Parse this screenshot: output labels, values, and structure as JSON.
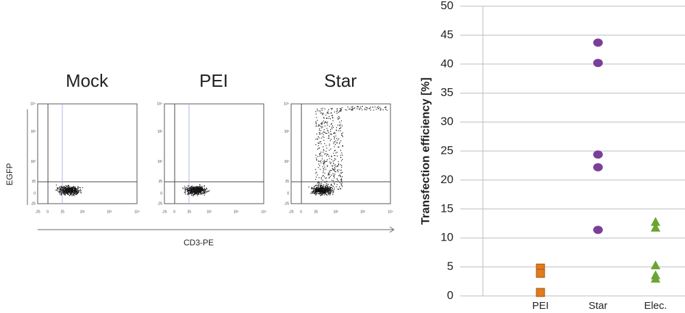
{
  "chart_data": [
    {
      "type": "flow",
      "titles": [
        "Mock",
        "PEI",
        "Star"
      ],
      "xlabel": "CD3-PE",
      "ylabel": "EGFP",
      "xticks": [
        "-25",
        "0",
        "25",
        "10²",
        "10³",
        "10⁴"
      ],
      "yticks": [
        "10⁴",
        "10³",
        "10²",
        "25",
        "0",
        "-25"
      ]
    },
    {
      "type": "dot",
      "ylabel": "Transfection efficiency [%]",
      "categories": [
        "PEI",
        "Star",
        "Elec."
      ],
      "values": [
        [
          4.8,
          3.9,
          0.6
        ],
        [
          43.7,
          40.2,
          24.4,
          22.2,
          11.4
        ],
        [
          12.8,
          11.8,
          5.3,
          3.6,
          3.0
        ]
      ],
      "colors": [
        "#e07b1f",
        "#7b3f98",
        "#6aa532"
      ],
      "markers": [
        "square",
        "circle",
        "triangle"
      ],
      "ylim": [
        0,
        50
      ],
      "yticks": [
        0,
        5,
        10,
        15,
        20,
        25,
        30,
        35,
        40,
        45,
        50
      ],
      "grid": true
    }
  ]
}
